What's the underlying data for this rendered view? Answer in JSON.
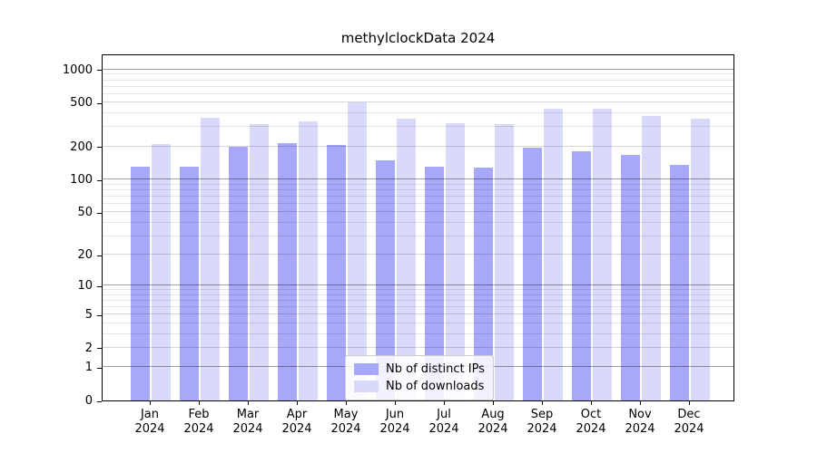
{
  "title": "methylclockData 2024",
  "colors": {
    "distinct_ips_bar": "#a8a8f8",
    "downloads_bar": "#d9d9fa",
    "axis": "#000000",
    "grid_major": "#a6a6a6",
    "grid_minor": "#e0e0e0",
    "legend_border": "#cccccc"
  },
  "legend": {
    "items": [
      {
        "label": "Nb of distinct IPs",
        "color": "#a8a8f8"
      },
      {
        "label": "Nb of downloads",
        "color": "#d9d9fa"
      }
    ]
  },
  "chart_data": {
    "type": "bar",
    "title": "methylclockData 2024",
    "scale": "log1p (y position proportional to log10(1+value), 0 at baseline)",
    "categories": [
      "Jan 2024",
      "Feb 2024",
      "Mar 2024",
      "Apr 2024",
      "May 2024",
      "Jun 2024",
      "Jul 2024",
      "Aug 2024",
      "Sep 2024",
      "Oct 2024",
      "Nov 2024",
      "Dec 2024"
    ],
    "category_months": [
      "Jan",
      "Feb",
      "Mar",
      "Apr",
      "May",
      "Jun",
      "Jul",
      "Aug",
      "Sep",
      "Oct",
      "Nov",
      "Dec"
    ],
    "category_year": "2024",
    "series": [
      {
        "name": "Nb of distinct IPs",
        "color": "#a8a8f8",
        "values": [
          130,
          132,
          199,
          214,
          207,
          150,
          132,
          129,
          194,
          182,
          168,
          136
        ]
      },
      {
        "name": "Nb of downloads",
        "color": "#d9d9fa",
        "values": [
          212,
          362,
          322,
          340,
          507,
          358,
          325,
          317,
          443,
          438,
          381,
          360
        ]
      }
    ],
    "xlabel": "",
    "ylabel": "",
    "y_ticks": [
      0,
      1,
      2,
      5,
      10,
      20,
      50,
      100,
      200,
      500,
      1000
    ],
    "ylim": [
      0,
      1400
    ],
    "grid": "on",
    "grid_major_at": [
      1,
      10,
      100,
      1000
    ],
    "legend_position": "lower center"
  }
}
